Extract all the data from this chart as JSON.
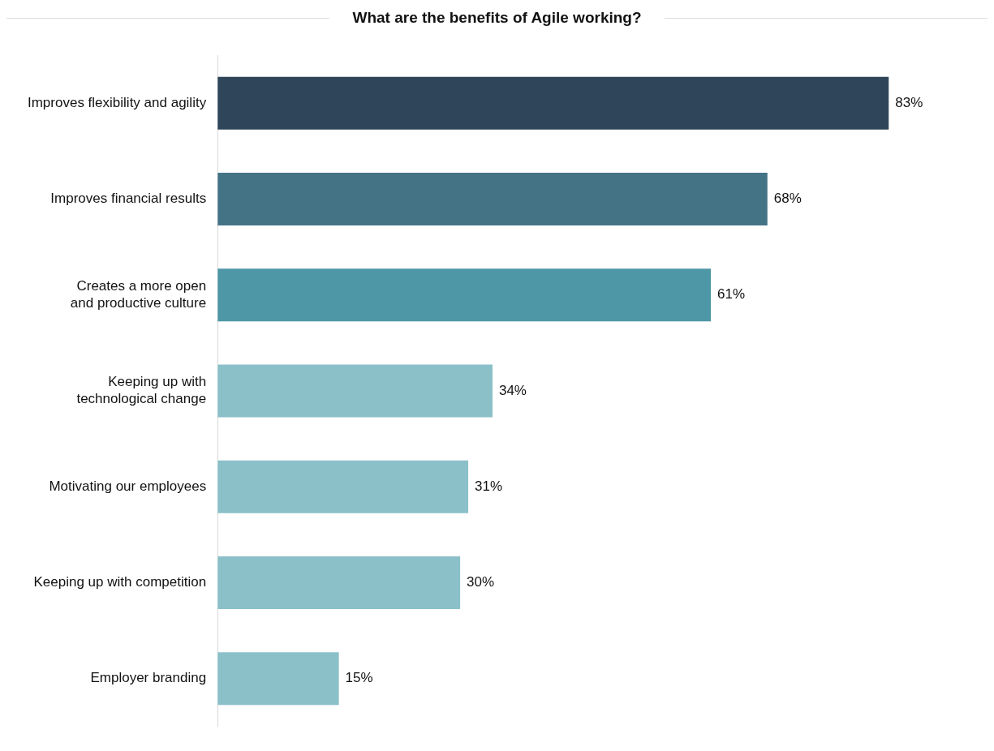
{
  "chart_data": {
    "type": "bar",
    "orientation": "horizontal",
    "title": "What are the benefits of Agile working?",
    "categories": [
      "Improves flexibility and agility",
      "Improves financial results",
      "Creates a more open and productive culture",
      "Keeping up with technological change",
      "Motivating our employees",
      "Keeping up with competition",
      "Employer branding"
    ],
    "values": [
      83,
      68,
      61,
      34,
      31,
      30,
      15
    ],
    "value_labels": [
      "83%",
      "68%",
      "61%",
      "34%",
      "31%",
      "30%",
      "15%"
    ],
    "colors": [
      "#2f465a",
      "#457386",
      "#4e97a6",
      "#8bc0c9",
      "#8bc0c9",
      "#8bc0c9",
      "#8bc0c9"
    ],
    "legend": false
  }
}
